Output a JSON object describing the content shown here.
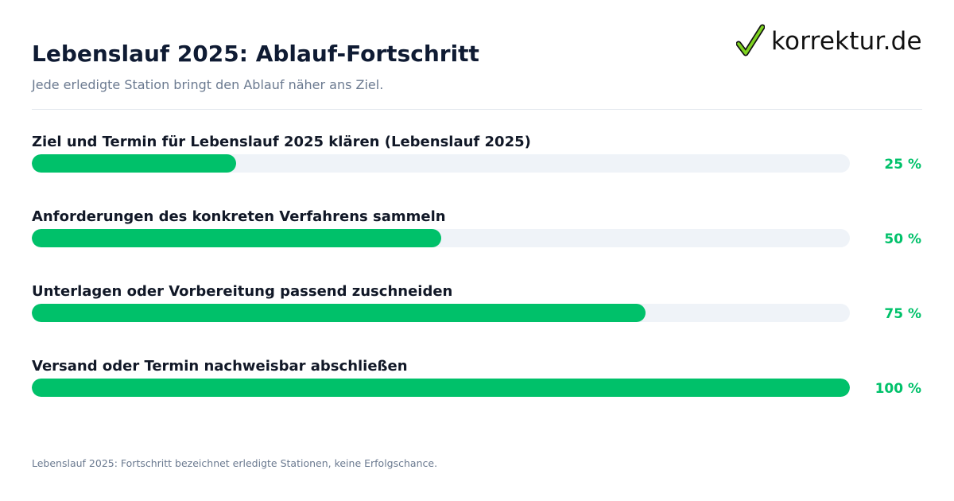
{
  "header": {
    "title": "Lebenslauf 2025: Ablauf-Fortschritt",
    "subtitle": "Jede erledigte Station bringt den Ablauf näher ans Ziel."
  },
  "logo": {
    "text": "korrektur.de",
    "icon": "checkmark-icon",
    "check_color": "#7ed321",
    "outline_color": "#111111"
  },
  "colors": {
    "fill": "#00c16a",
    "track": "#eff3f8",
    "title": "#0f1b33",
    "muted": "#6b7a90",
    "label": "#111827"
  },
  "chart_data": {
    "type": "bar",
    "orientation": "horizontal",
    "categories": [
      "Ziel und Termin für Lebenslauf 2025 klären (Lebenslauf 2025)",
      "Anforderungen des konkreten Verfahrens sammeln",
      "Unterlagen oder Vorbereitung passend zuschneiden",
      "Versand oder Termin nachweisbar abschließen"
    ],
    "values": [
      25,
      50,
      75,
      100
    ],
    "value_labels": [
      "25 %",
      "50 %",
      "75 %",
      "100 %"
    ],
    "xlim": [
      0,
      100
    ],
    "unit": "%",
    "grid": false
  },
  "footnote": "Lebenslauf 2025: Fortschritt bezeichnet erledigte Stationen, keine Erfolgschance."
}
